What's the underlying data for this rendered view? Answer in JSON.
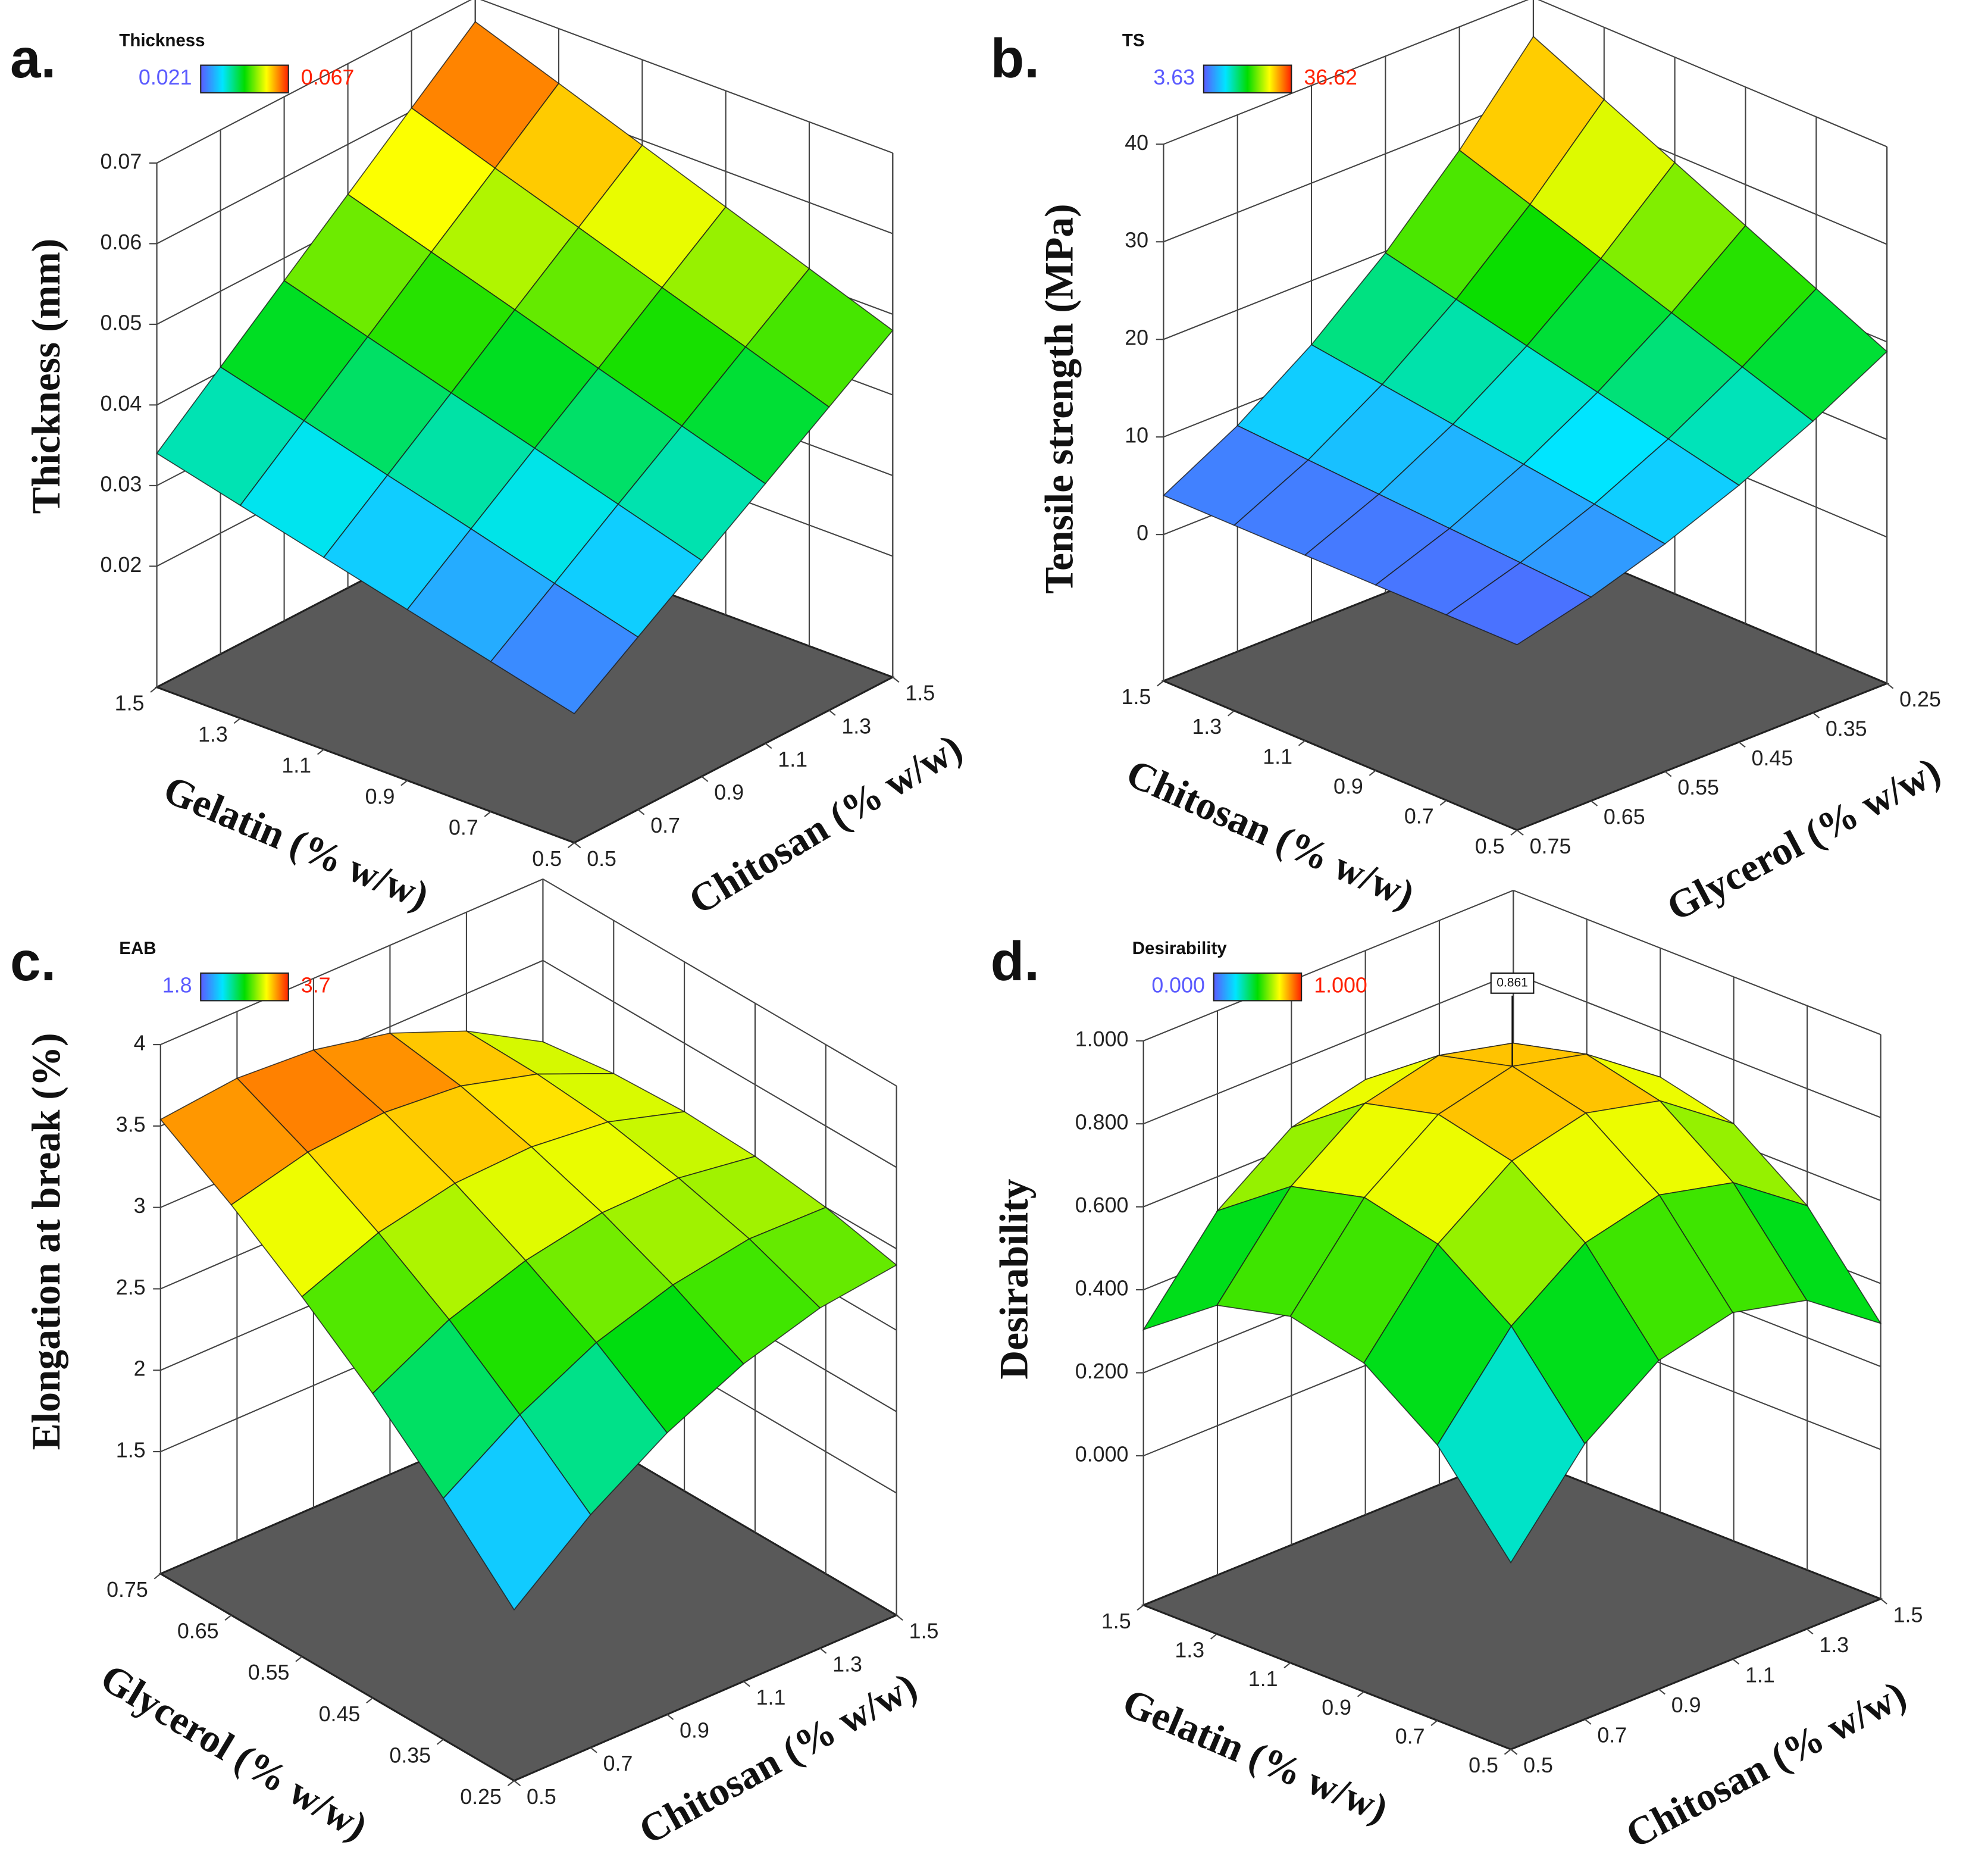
{
  "chart_data": [
    {
      "type": "surface",
      "panel_label": "a.",
      "legend": {
        "title": "Thickness",
        "min": 0.021,
        "max": 0.067
      },
      "colormap": [
        "#5a5aff",
        "#00e5ff",
        "#00dd00",
        "#ffff00",
        "#ff2000"
      ],
      "xlabel": "Gelatin (% w/w)",
      "ylabel": "Chitosan (% w/w)",
      "zlabel": "Thickness (mm)",
      "xlim": [
        0.5,
        1.5
      ],
      "xticks": [
        0.5,
        0.7,
        0.9,
        1.1,
        1.3,
        1.5
      ],
      "ylim": [
        0.5,
        1.5
      ],
      "yticks": [
        0.5,
        0.7,
        0.9,
        1.1,
        1.3,
        1.5
      ],
      "zlim": [
        0.005,
        0.07
      ],
      "zticks": [
        0.02,
        0.03,
        0.04,
        0.05,
        0.06,
        0.07
      ],
      "x": [
        0.5,
        0.7,
        0.9,
        1.1,
        1.3,
        1.5
      ],
      "y": [
        0.5,
        0.7,
        0.9,
        1.1,
        1.3,
        1.5
      ],
      "z": [
        [
          0.021,
          0.0264,
          0.0318,
          0.0372,
          0.0426,
          0.048
        ],
        [
          0.0236,
          0.0292,
          0.0349,
          0.0405,
          0.0462,
          0.0518
        ],
        [
          0.0262,
          0.0321,
          0.038,
          0.0438,
          0.0497,
          0.0556
        ],
        [
          0.0288,
          0.0349,
          0.041,
          0.0472,
          0.0533,
          0.0594
        ],
        [
          0.0314,
          0.0378,
          0.0441,
          0.0505,
          0.0568,
          0.0632
        ],
        [
          0.034,
          0.0406,
          0.0472,
          0.0538,
          0.0604,
          0.067
        ]
      ]
    },
    {
      "type": "surface",
      "panel_label": "b.",
      "legend": {
        "title": "TS",
        "min": 3.63,
        "max": 36.62
      },
      "colormap": [
        "#5a5aff",
        "#00e5ff",
        "#00dd00",
        "#ffff00",
        "#ff2000"
      ],
      "xlabel": "Chitosan (% w/w)",
      "ylabel": "Glycerol (% w/w)",
      "zlabel": "Tensile strength (MPa)",
      "xlim": [
        0.5,
        1.5
      ],
      "xticks": [
        0.5,
        0.7,
        0.9,
        1.1,
        1.3,
        1.5
      ],
      "ylim": [
        0.75,
        0.25
      ],
      "yticks": [
        0.75,
        0.65,
        0.55,
        0.45,
        0.35,
        0.25
      ],
      "zlim": [
        -15,
        40
      ],
      "zticks": [
        0,
        10,
        20,
        30,
        40
      ],
      "x": [
        0.5,
        0.7,
        0.9,
        1.1,
        1.3,
        1.5
      ],
      "y": [
        0.75,
        0.65,
        0.55,
        0.45,
        0.35,
        0.25
      ],
      "z": [
        [
          4,
          5.88,
          8.32,
          11.32,
          14.88,
          19
        ],
        [
          4,
          6.34,
          9.34,
          13.02,
          17.38,
          22.4
        ],
        [
          4,
          6.79,
          10.37,
          14.73,
          19.87,
          25.8
        ],
        [
          4,
          7.25,
          11.39,
          16.43,
          22.37,
          29.2
        ],
        [
          4,
          7.7,
          12.42,
          18.14,
          24.86,
          32.6
        ],
        [
          4,
          8.16,
          13.44,
          19.84,
          27.36,
          36
        ]
      ]
    },
    {
      "type": "surface",
      "panel_label": "c.",
      "legend": {
        "title": "EAB",
        "min": 1.8,
        "max": 3.7
      },
      "colormap": [
        "#5a5aff",
        "#00e5ff",
        "#00dd00",
        "#ffff00",
        "#ff2000"
      ],
      "xlabel": "Glycerol (% w/w)",
      "ylabel": "Chitosan (% w/w)",
      "zlabel": "Elongation at break (%)",
      "xlim": [
        0.25,
        0.75
      ],
      "xticks": [
        0.25,
        0.35,
        0.45,
        0.55,
        0.65,
        0.75
      ],
      "ylim": [
        0.5,
        1.5
      ],
      "yticks": [
        0.5,
        0.7,
        0.9,
        1.1,
        1.3,
        1.5
      ],
      "zlim": [
        0.75,
        4
      ],
      "zticks": [
        1.5,
        2,
        2.5,
        3,
        3.5,
        4
      ],
      "x": [
        0.25,
        0.35,
        0.45,
        0.55,
        0.65,
        0.75
      ],
      "y": [
        0.5,
        0.7,
        0.9,
        1.1,
        1.3,
        1.5
      ],
      "z": [
        [
          1.8,
          2.18,
          2.48,
          2.7,
          2.84,
          2.9
        ],
        [
          2.23,
          2.54,
          2.78,
          2.93,
          3.01,
          3.0
        ],
        [
          2.62,
          2.87,
          3.03,
          3.12,
          3.13,
          3.06
        ],
        [
          2.96,
          3.15,
          3.25,
          3.27,
          3.22,
          3.08
        ],
        [
          3.27,
          3.39,
          3.43,
          3.39,
          3.26,
          3.06
        ],
        [
          3.54,
          3.59,
          3.56,
          3.46,
          3.27,
          3.0
        ]
      ]
    },
    {
      "type": "surface",
      "panel_label": "d.",
      "legend": {
        "title": "Desirability",
        "min": {
          "value": 0,
          "label": "0.000"
        },
        "max": {
          "value": 1,
          "label": "1.000"
        }
      },
      "colormap": [
        "#5a5aff",
        "#00e5ff",
        "#00dd00",
        "#ffff00",
        "#ff2000"
      ],
      "xlabel": "Gelatin (% w/w)",
      "ylabel": "Chitosan (% w/w)",
      "zlabel": "Desirability",
      "xlim": [
        0.5,
        1.5
      ],
      "xticks": [
        0.5,
        0.7,
        0.9,
        1.1,
        1.3,
        1.5
      ],
      "ylim": [
        0.5,
        1.5
      ],
      "yticks": [
        0.5,
        0.7,
        0.9,
        1.1,
        1.3,
        1.5
      ],
      "zlim": [
        -0.36,
        1
      ],
      "zticks": [
        {
          "value": 0,
          "label": "0.000"
        },
        {
          "value": 0.2,
          "label": "0.200"
        },
        {
          "value": 0.4,
          "label": "0.400"
        },
        {
          "value": 0.6,
          "label": "0.600"
        },
        {
          "value": 0.8,
          "label": "0.800"
        },
        {
          "value": 1,
          "label": "1.000"
        }
      ],
      "x": [
        0.5,
        0.7,
        0.9,
        1.1,
        1.3,
        1.5
      ],
      "y": [
        0.5,
        0.7,
        0.9,
        1.1,
        1.3,
        1.5
      ],
      "z": [
        [
          0.09,
          0.304,
          0.432,
          0.475,
          0.432,
          0.304
        ],
        [
          0.304,
          0.518,
          0.646,
          0.689,
          0.646,
          0.518
        ],
        [
          0.432,
          0.646,
          0.774,
          0.817,
          0.774,
          0.646
        ],
        [
          0.475,
          0.689,
          0.817,
          0.86,
          0.817,
          0.689
        ],
        [
          0.432,
          0.646,
          0.774,
          0.817,
          0.774,
          0.646
        ],
        [
          0.304,
          0.518,
          0.646,
          0.689,
          0.646,
          0.518
        ]
      ],
      "annotation": {
        "value": 0.861,
        "label": "0.861"
      }
    }
  ]
}
